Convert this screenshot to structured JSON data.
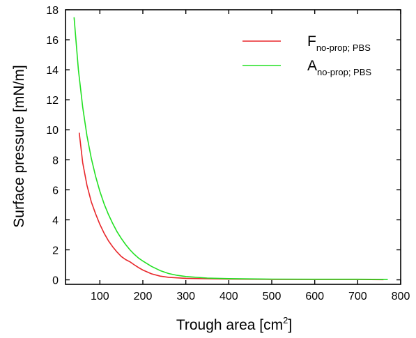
{
  "chart_data": {
    "type": "line",
    "xlabel_main": "Trough area [cm",
    "xlabel_sup": "2",
    "xlabel_end": "]",
    "ylabel": "Surface pressure [mN/m]",
    "xlim": [
      20,
      800
    ],
    "ylim": [
      -0.3,
      18
    ],
    "xticks": [
      100,
      200,
      300,
      400,
      500,
      600,
      700,
      800
    ],
    "yticks": [
      0,
      2,
      4,
      6,
      8,
      10,
      12,
      14,
      16,
      18
    ],
    "legend_position": "top-right",
    "series": [
      {
        "name_main": "F",
        "name_sub": "no-prop; PBS",
        "color": "#e8262a",
        "points": [
          [
            52,
            9.8
          ],
          [
            60,
            7.8
          ],
          [
            70,
            6.3
          ],
          [
            80,
            5.2
          ],
          [
            90,
            4.4
          ],
          [
            100,
            3.7
          ],
          [
            110,
            3.1
          ],
          [
            120,
            2.6
          ],
          [
            130,
            2.2
          ],
          [
            140,
            1.85
          ],
          [
            150,
            1.55
          ],
          [
            160,
            1.35
          ],
          [
            170,
            1.2
          ],
          [
            180,
            1.0
          ],
          [
            190,
            0.82
          ],
          [
            200,
            0.65
          ],
          [
            220,
            0.4
          ],
          [
            240,
            0.25
          ],
          [
            260,
            0.17
          ],
          [
            280,
            0.13
          ],
          [
            300,
            0.1
          ],
          [
            350,
            0.07
          ],
          [
            400,
            0.05
          ],
          [
            500,
            0.03
          ],
          [
            600,
            0.02
          ],
          [
            700,
            0.02
          ],
          [
            760,
            0.01
          ]
        ]
      },
      {
        "name_main": "A",
        "name_sub": "no-prop; PBS",
        "color": "#22e022",
        "points": [
          [
            40,
            17.5
          ],
          [
            50,
            14.0
          ],
          [
            60,
            11.5
          ],
          [
            70,
            9.6
          ],
          [
            80,
            8.1
          ],
          [
            90,
            6.9
          ],
          [
            100,
            5.9
          ],
          [
            110,
            5.05
          ],
          [
            120,
            4.35
          ],
          [
            130,
            3.75
          ],
          [
            140,
            3.2
          ],
          [
            150,
            2.75
          ],
          [
            160,
            2.35
          ],
          [
            170,
            2.0
          ],
          [
            180,
            1.7
          ],
          [
            190,
            1.45
          ],
          [
            200,
            1.25
          ],
          [
            220,
            0.9
          ],
          [
            240,
            0.62
          ],
          [
            260,
            0.42
          ],
          [
            280,
            0.3
          ],
          [
            300,
            0.22
          ],
          [
            350,
            0.12
          ],
          [
            400,
            0.08
          ],
          [
            450,
            0.06
          ],
          [
            500,
            0.05
          ],
          [
            600,
            0.04
          ],
          [
            700,
            0.04
          ],
          [
            770,
            0.03
          ]
        ]
      }
    ]
  }
}
